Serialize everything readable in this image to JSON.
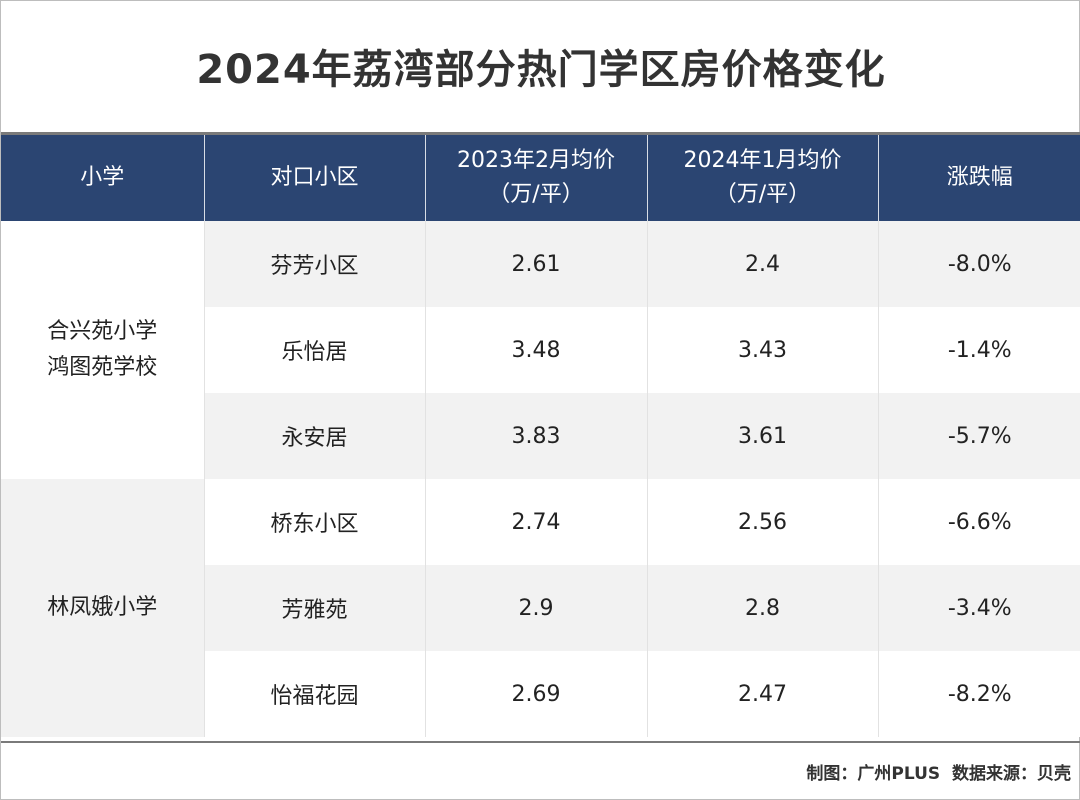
{
  "chart_data": {
    "type": "table",
    "title": "2024年荔湾部分热门学区房价格变化",
    "columns": [
      "小学",
      "对口小区",
      "2023年2月均价\n（万/平）",
      "2024年1月均价\n（万/平）",
      "涨跌幅"
    ],
    "columns_display": [
      [
        "小学"
      ],
      [
        "对口小区"
      ],
      [
        "2023年2月均价",
        "（万/平）"
      ],
      [
        "2024年1月均价",
        "（万/平）"
      ],
      [
        "涨跌幅"
      ]
    ],
    "groups": [
      {
        "school_lines": [
          "合兴苑小学",
          "鸿图苑学校"
        ],
        "rows": [
          {
            "community": "芬芳小区",
            "price_2023_02": "2.61",
            "price_2024_01": "2.4",
            "change": "-8.0%"
          },
          {
            "community": "乐怡居",
            "price_2023_02": "3.48",
            "price_2024_01": "3.43",
            "change": "-1.4%"
          },
          {
            "community": "永安居",
            "price_2023_02": "3.83",
            "price_2024_01": "3.61",
            "change": "-5.7%"
          }
        ]
      },
      {
        "school_lines": [
          "林凤娥小学"
        ],
        "rows": [
          {
            "community": "桥东小区",
            "price_2023_02": "2.74",
            "price_2024_01": "2.56",
            "change": "-6.6%"
          },
          {
            "community": "芳雅苑",
            "price_2023_02": "2.9",
            "price_2024_01": "2.8",
            "change": "-3.4%"
          },
          {
            "community": "怡福花园",
            "price_2023_02": "2.69",
            "price_2024_01": "2.47",
            "change": "-8.2%"
          }
        ]
      }
    ]
  },
  "footer": {
    "credit": "制图：广州PLUS",
    "source": "数据来源：贝壳"
  },
  "colors": {
    "header_bg": "#2b4572",
    "header_text": "#ffffff",
    "row_shade": "#f2f2f2",
    "row_plain": "#ffffff"
  }
}
